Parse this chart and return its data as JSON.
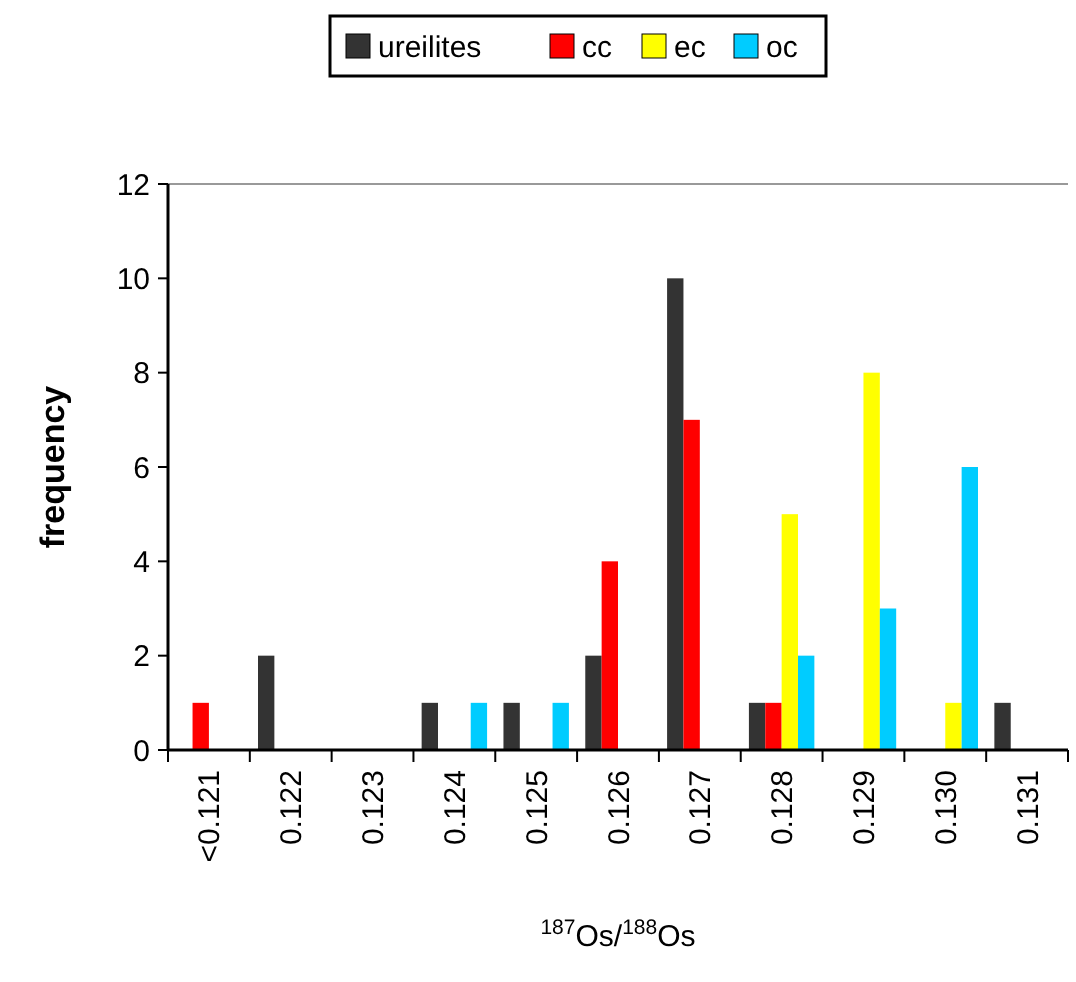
{
  "chart_data": {
    "type": "bar",
    "xlabel": "$^{187}$Os/$^{188}$Os",
    "ylabel": "frequency",
    "categories": [
      "<0.121",
      "0.122",
      "0.123",
      "0.124",
      "0.125",
      "0.126",
      "0.127",
      "0.128",
      "0.129",
      "0.130",
      "0.131"
    ],
    "series": [
      {
        "name": "ureilites",
        "color": "#333333",
        "values": [
          0,
          2,
          0,
          1,
          1,
          2,
          10,
          1,
          0,
          0,
          1
        ]
      },
      {
        "name": "cc",
        "color": "#ff0000",
        "values": [
          1,
          0,
          0,
          0,
          0,
          4,
          7,
          1,
          0,
          0,
          0
        ]
      },
      {
        "name": "ec",
        "color": "#ffff00",
        "values": [
          0,
          0,
          0,
          0,
          0,
          0,
          0,
          5,
          8,
          1,
          0
        ]
      },
      {
        "name": "oc",
        "color": "#00ccff",
        "values": [
          0,
          0,
          0,
          1,
          1,
          0,
          0,
          2,
          3,
          6,
          0
        ]
      }
    ],
    "ylim": [
      0,
      12
    ],
    "yticks": [
      0,
      2,
      4,
      6,
      8,
      10,
      12
    ],
    "grid": false,
    "legend": "top"
  }
}
